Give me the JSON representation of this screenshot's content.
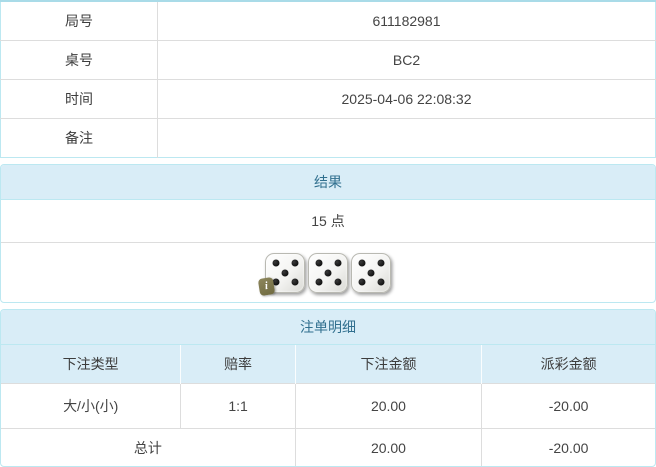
{
  "colors": {
    "panel_border": "#bce8f1",
    "header_bg": "#d9edf7",
    "header_text": "#31708f",
    "row_divider": "#dddddd",
    "body_text": "#444444",
    "negative_red": "#e64545",
    "dice_badge_bg": "#7d7748"
  },
  "info": {
    "rows": [
      {
        "label": "局号",
        "value": "611182981"
      },
      {
        "label": "桌号",
        "value": "BC2"
      },
      {
        "label": "时间",
        "value": "2025-04-06 22:08:32"
      },
      {
        "label": "备注",
        "value": ""
      }
    ]
  },
  "result": {
    "title": "结果",
    "points": "15 点",
    "dice": [
      5,
      5,
      5
    ],
    "info_badge": "i"
  },
  "bets": {
    "title": "注单明细",
    "columns": [
      "下注类型",
      "赔率",
      "下注金额",
      "派彩金额"
    ],
    "rows": [
      {
        "type": "大/小(小)",
        "odds": "1:1",
        "amount": "20.00",
        "payout": "-20.00"
      }
    ],
    "total": {
      "label": "总计",
      "amount": "20.00",
      "payout": "-20.00"
    }
  }
}
